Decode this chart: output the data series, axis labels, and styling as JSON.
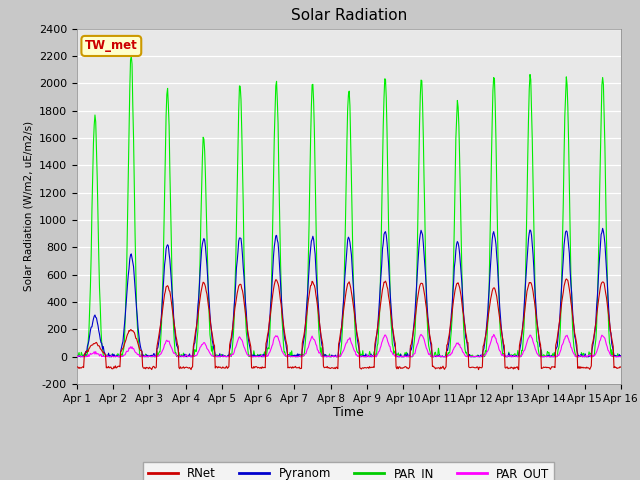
{
  "title": "Solar Radiation",
  "ylabel": "Solar Radiation (W/m2, uE/m2/s)",
  "xlabel": "Time",
  "ylim": [
    -200,
    2400
  ],
  "yticks": [
    -200,
    0,
    200,
    400,
    600,
    800,
    1000,
    1200,
    1400,
    1600,
    1800,
    2000,
    2200,
    2400
  ],
  "num_days": 15,
  "station_label": "TW_met",
  "legend_labels": [
    "RNet",
    "Pyranom",
    "PAR_IN",
    "PAR_OUT"
  ],
  "legend_colors": [
    "#cc0000",
    "#0000cc",
    "#00cc00",
    "#ff00ff"
  ],
  "line_colors": {
    "RNet": "#cc0000",
    "Pyranom": "#0000cc",
    "PAR_IN": "#00ee00",
    "PAR_OUT": "#ff00ff"
  },
  "fig_bg_color": "#c8c8c8",
  "plot_bg_color": "#e8e8e8",
  "grid_color": "#ffffff"
}
